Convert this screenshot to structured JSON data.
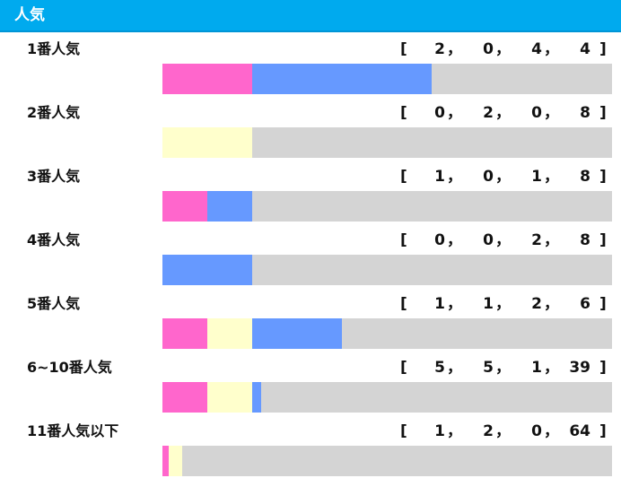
{
  "header": {
    "title": "人気"
  },
  "colors": {
    "header_bg": "#00aaee",
    "first": "#ff66cc",
    "second": "#ffffcc",
    "third": "#6699ff",
    "other": "#d4d4d4"
  },
  "record_symbols": {
    "open": "[",
    "close": "]",
    "sep": "，"
  },
  "rows": [
    {
      "label": "1番人気",
      "record": [
        "2",
        "0",
        "4",
        "4"
      ]
    },
    {
      "label": "2番人気",
      "record": [
        "0",
        "2",
        "0",
        "8"
      ]
    },
    {
      "label": "3番人気",
      "record": [
        "1",
        "0",
        "1",
        "8"
      ]
    },
    {
      "label": "4番人気",
      "record": [
        "0",
        "0",
        "2",
        "8"
      ]
    },
    {
      "label": "5番人気",
      "record": [
        "1",
        "1",
        "2",
        "6"
      ]
    },
    {
      "label": "6~10番人気",
      "record": [
        "5",
        "5",
        "1",
        "39"
      ]
    },
    {
      "label": "11番人気以下",
      "record": [
        "1",
        "2",
        "0",
        "64"
      ]
    }
  ]
}
